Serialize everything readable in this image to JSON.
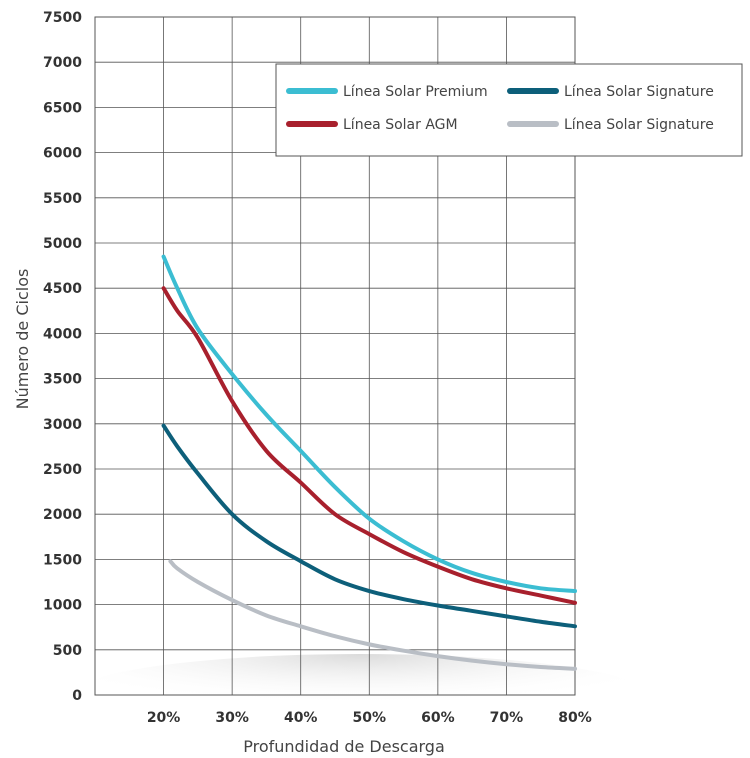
{
  "chart_data": {
    "type": "line",
    "xlabel": "Profundidad de Descarga",
    "ylabel": "Número de Ciclos",
    "ylim": [
      0,
      7500
    ],
    "xlim": [
      10,
      80
    ],
    "y_ticks": [
      0,
      500,
      1000,
      1500,
      2000,
      2500,
      3000,
      3500,
      4000,
      4500,
      5000,
      5500,
      6000,
      6500,
      7000,
      7500
    ],
    "y_tick_labels": [
      "0",
      "500",
      "1000",
      "1500",
      "2000",
      "2500",
      "3000",
      "3500",
      "4000",
      "4500",
      "5000",
      "5500",
      "6000",
      "6500",
      "7000",
      "7500"
    ],
    "x_ticks": [
      20,
      30,
      40,
      50,
      60,
      70,
      80
    ],
    "x_tick_labels": [
      "20%",
      "30%",
      "40%",
      "50%",
      "60%",
      "70%",
      "80%"
    ],
    "grid": true,
    "legend": "top-right",
    "series": [
      {
        "name": "Línea Solar Premium",
        "color": "#3bbdd2",
        "x": [
          20,
          22,
          25,
          30,
          35,
          40,
          45,
          50,
          55,
          60,
          65,
          70,
          75,
          80
        ],
        "y": [
          4850,
          4500,
          4050,
          3550,
          3100,
          2700,
          2300,
          1950,
          1700,
          1500,
          1350,
          1250,
          1180,
          1150
        ]
      },
      {
        "name": "Línea Solar AGM",
        "color": "#a8202d",
        "x": [
          20,
          22,
          25,
          30,
          35,
          40,
          45,
          50,
          55,
          60,
          65,
          70,
          75,
          80
        ],
        "y": [
          4500,
          4250,
          3950,
          3250,
          2700,
          2350,
          2000,
          1780,
          1580,
          1420,
          1280,
          1180,
          1100,
          1020
        ]
      },
      {
        "name": "Línea Solar Signature",
        "color": "#0d5f7a",
        "x": [
          20,
          22,
          25,
          30,
          35,
          40,
          45,
          50,
          55,
          60,
          65,
          70,
          75,
          80
        ],
        "y": [
          2980,
          2750,
          2450,
          2000,
          1700,
          1480,
          1280,
          1150,
          1060,
          990,
          930,
          870,
          810,
          760
        ]
      },
      {
        "name": "Línea Solar Signature",
        "color": "#b9bec5",
        "x": [
          21,
          22,
          25,
          30,
          35,
          40,
          45,
          50,
          55,
          60,
          65,
          70,
          75,
          80
        ],
        "y": [
          1480,
          1400,
          1250,
          1050,
          880,
          760,
          650,
          560,
          490,
          430,
          380,
          340,
          310,
          290
        ]
      }
    ]
  }
}
